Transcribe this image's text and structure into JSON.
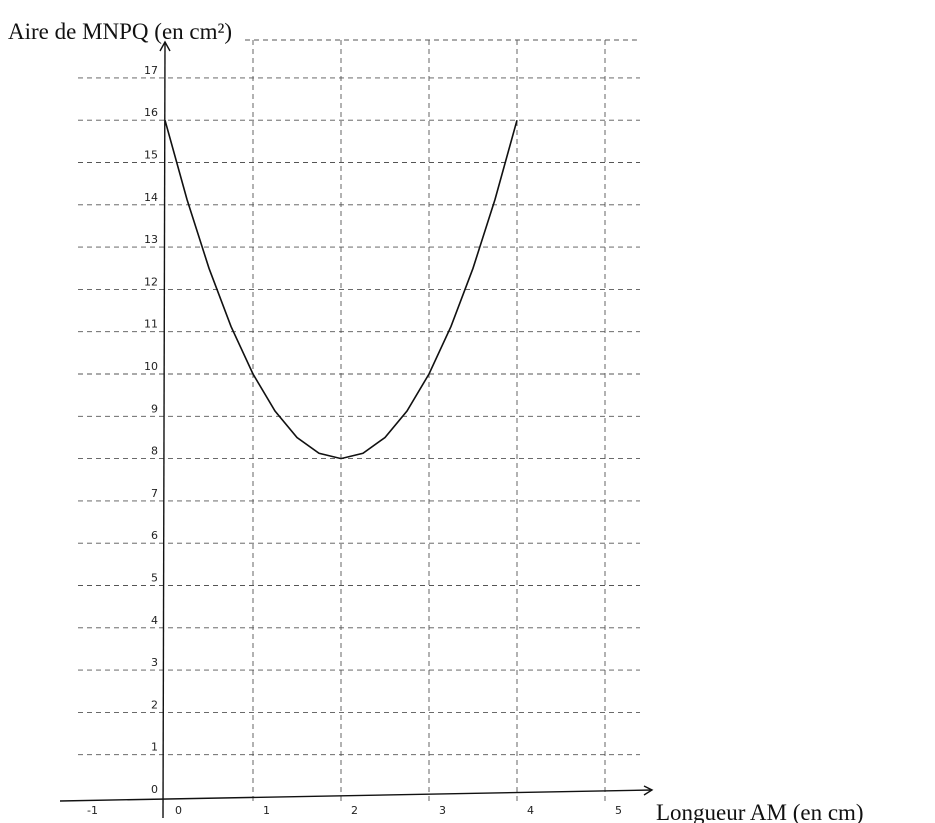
{
  "chart_data": {
    "type": "line",
    "title": "Aire de MNPQ (en cm²)",
    "xlabel": "Longueur AM (en cm)",
    "ylabel": "Aire de MNPQ (en cm²)",
    "xlim": [
      -1,
      5.4
    ],
    "ylim": [
      0,
      17.6
    ],
    "grid": true,
    "x_ticks": [
      "-1",
      "0",
      "1",
      "2",
      "3",
      "4",
      "5"
    ],
    "y_ticks": [
      "0",
      "1",
      "2",
      "3",
      "4",
      "5",
      "6",
      "7",
      "8",
      "9",
      "10",
      "11",
      "12",
      "13",
      "14",
      "15",
      "16",
      "17"
    ],
    "series": [
      {
        "x": [
          0,
          0.25,
          0.5,
          0.75,
          1,
          1.25,
          1.5,
          1.75,
          2,
          2.25,
          2.5,
          2.75,
          3,
          3.25,
          3.5,
          3.75,
          4
        ],
        "y": [
          16,
          14.125,
          12.5,
          11.125,
          10,
          9.125,
          8.5,
          8.125,
          8,
          8.125,
          8.5,
          9.125,
          10,
          11.125,
          12.5,
          14.125,
          16
        ],
        "color": "#111111"
      }
    ]
  }
}
